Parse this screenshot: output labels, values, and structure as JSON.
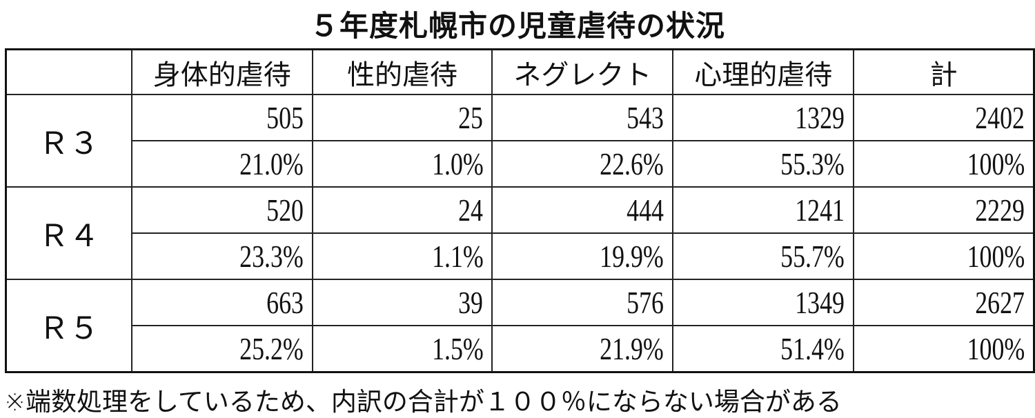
{
  "title": "５年度札幌市の児童虐待の状況",
  "chart_data": {
    "type": "table",
    "title": "５年度札幌市の児童虐待の状況",
    "columns": [
      "",
      "身体的虐待",
      "性的虐待",
      "ネグレクト",
      "心理的虐待",
      "計"
    ],
    "rows": [
      {
        "label": "Ｒ３",
        "counts": [
          "505",
          "25",
          "543",
          "1329",
          "2402"
        ],
        "percents": [
          "21.0%",
          "1.0%",
          "22.6%",
          "55.3%",
          "100%"
        ]
      },
      {
        "label": "Ｒ４",
        "counts": [
          "520",
          "24",
          "444",
          "1241",
          "2229"
        ],
        "percents": [
          "23.3%",
          "1.1%",
          "19.9%",
          "55.7%",
          "100%"
        ]
      },
      {
        "label": "Ｒ５",
        "counts": [
          "663",
          "39",
          "576",
          "1349",
          "2627"
        ],
        "percents": [
          "25.2%",
          "1.5%",
          "21.9%",
          "51.4%",
          "100%"
        ]
      }
    ]
  },
  "footnote": "※端数処理をしているため、内訳の合計が１００％にならない場合がある"
}
